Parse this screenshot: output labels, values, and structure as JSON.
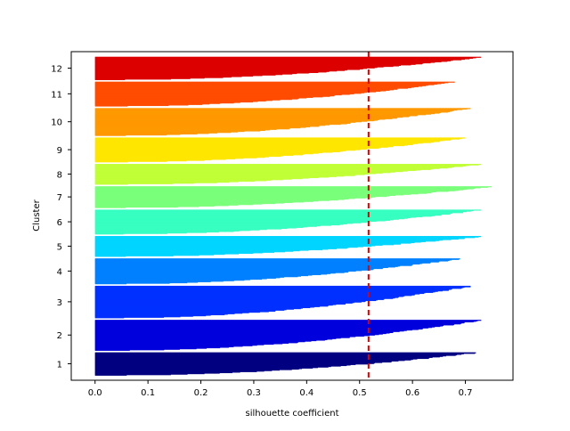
{
  "chart_data": {
    "type": "silhouette",
    "xlabel": "silhouette coefficient",
    "ylabel": "Cluster",
    "xlim": [
      -0.045,
      0.79
    ],
    "xticks": [
      0.0,
      0.1,
      0.2,
      0.3,
      0.4,
      0.5,
      0.6,
      0.7
    ],
    "xtick_labels": [
      "0.0",
      "0.1",
      "0.2",
      "0.3",
      "0.4",
      "0.5",
      "0.6",
      "0.7"
    ],
    "average_silhouette": 0.517,
    "average_line_color": "#dd0000",
    "clusters": [
      {
        "label": "1",
        "size": 45,
        "max": 0.72,
        "color": "#000080"
      },
      {
        "label": "2",
        "size": 60,
        "max": 0.73,
        "color": "#0000dd"
      },
      {
        "label": "3",
        "size": 63,
        "max": 0.71,
        "color": "#0030ff"
      },
      {
        "label": "4",
        "size": 50,
        "max": 0.69,
        "color": "#0080ff"
      },
      {
        "label": "5",
        "size": 40,
        "max": 0.73,
        "color": "#00d5ff"
      },
      {
        "label": "6",
        "size": 48,
        "max": 0.73,
        "color": "#36ffc1"
      },
      {
        "label": "7",
        "size": 42,
        "max": 0.75,
        "color": "#7bff7b"
      },
      {
        "label": "8",
        "size": 40,
        "max": 0.73,
        "color": "#c1ff36"
      },
      {
        "label": "9",
        "size": 48,
        "max": 0.7,
        "color": "#ffe600"
      },
      {
        "label": "10",
        "size": 54,
        "max": 0.71,
        "color": "#ff9900"
      },
      {
        "label": "11",
        "size": 48,
        "max": 0.68,
        "color": "#ff4c00"
      },
      {
        "label": "12",
        "size": 45,
        "max": 0.73,
        "color": "#dd0000"
      }
    ]
  }
}
